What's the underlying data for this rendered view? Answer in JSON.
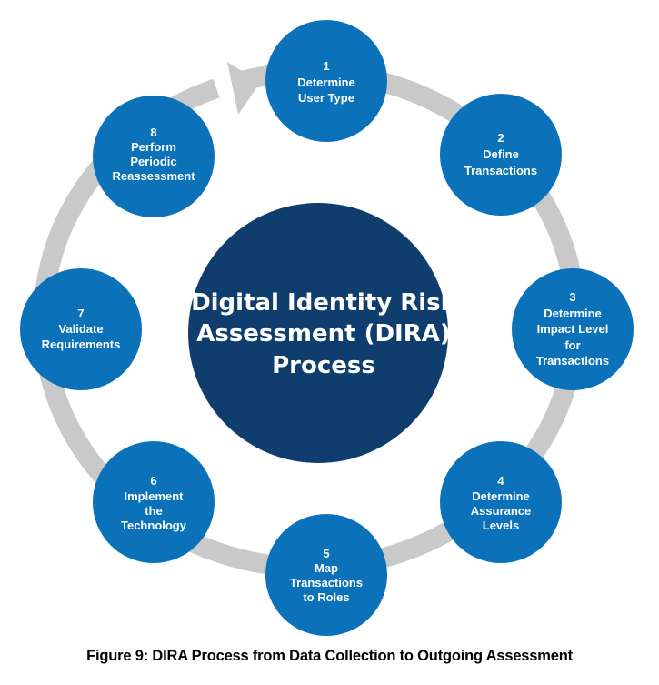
{
  "diagram": {
    "center": {
      "lines": [
        "Digital Identity Risk",
        "Assessment (DIRA)",
        "Process"
      ],
      "color": "#0e3d6e"
    },
    "node_color": "#0b72b9",
    "ring_color": "#c9c9c9",
    "nodes": [
      {
        "number": "1",
        "lines": [
          "Determine",
          "User Type"
        ]
      },
      {
        "number": "2",
        "lines": [
          "Define",
          "Transactions"
        ]
      },
      {
        "number": "3",
        "lines": [
          "Determine",
          "Impact Level",
          "for",
          "Transactions"
        ]
      },
      {
        "number": "4",
        "lines": [
          "Determine",
          "Assurance",
          "Levels"
        ]
      },
      {
        "number": "5",
        "lines": [
          "Map",
          "Transactions",
          "to Roles"
        ]
      },
      {
        "number": "6",
        "lines": [
          "Implement",
          "the",
          "Technology"
        ]
      },
      {
        "number": "7",
        "lines": [
          "Validate",
          "Requirements"
        ]
      },
      {
        "number": "8",
        "lines": [
          "Perform",
          "Periodic",
          "Reassessment"
        ]
      }
    ]
  },
  "caption": "Figure 9: DIRA Process from Data Collection to Outgoing Assessment"
}
